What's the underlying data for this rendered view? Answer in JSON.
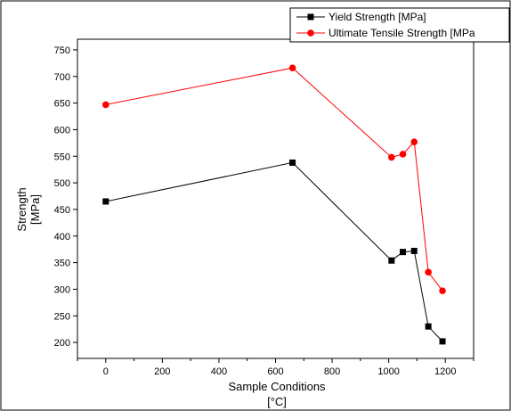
{
  "chart_data": {
    "type": "line",
    "title": "",
    "xlabel_lines": [
      "Sample Conditions",
      "[°C]"
    ],
    "ylabel_lines": [
      "Strength",
      "[MPa]"
    ],
    "xlim": [
      -100,
      1300
    ],
    "ylim": [
      170,
      770
    ],
    "x_ticks": [
      0,
      200,
      400,
      600,
      800,
      1000,
      1200
    ],
    "y_ticks": [
      200,
      250,
      300,
      350,
      400,
      450,
      500,
      550,
      600,
      650,
      700,
      750
    ],
    "grid": false,
    "legend_position": "top-right",
    "series": [
      {
        "name": "Yield Strength [MPa]",
        "color": "#000000",
        "marker": "square",
        "x": [
          0,
          660,
          1010,
          1050,
          1090,
          1140,
          1190
        ],
        "y": [
          465,
          538,
          354,
          370,
          372,
          230,
          202
        ]
      },
      {
        "name": "Ultimate Tensile Strength [MPa",
        "color": "#ff0000",
        "marker": "circle",
        "x": [
          0,
          660,
          1010,
          1050,
          1090,
          1140,
          1190
        ],
        "y": [
          647,
          716,
          548,
          554,
          577,
          332,
          297
        ]
      }
    ]
  }
}
